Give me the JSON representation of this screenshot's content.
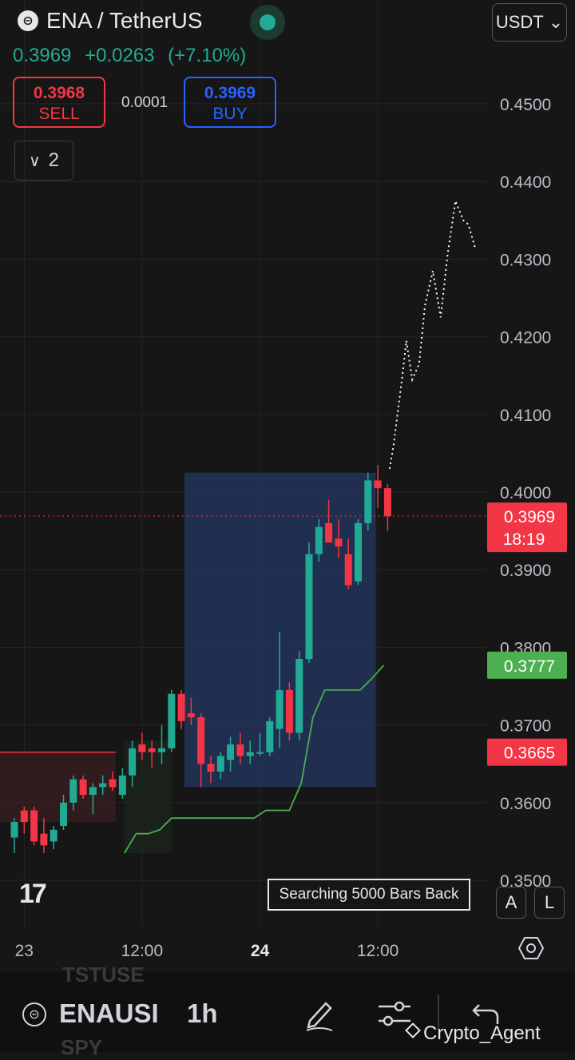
{
  "header": {
    "pair": "ENA / TetherUS",
    "last_price": "0.3969",
    "change": "+0.0263",
    "change_pct": "(+7.10%)",
    "currency": "USDT",
    "sell_price": "0.3968",
    "sell_label": "SELL",
    "buy_price": "0.3969",
    "buy_label": "BUY",
    "spread": "0.0001",
    "collapse_count": "2"
  },
  "chart_data": {
    "type": "candlestick",
    "ylim": [
      0.35,
      0.45
    ],
    "y_ticks": [
      "0.4500",
      "0.4400",
      "0.4300",
      "0.4200",
      "0.4100",
      "0.4000",
      "0.3900",
      "0.3800",
      "0.3700",
      "0.3600",
      "0.3500"
    ],
    "x_ticks": [
      {
        "label": "23",
        "bold": false,
        "index": 1
      },
      {
        "label": "12:00",
        "bold": false,
        "index": 13
      },
      {
        "label": "24",
        "bold": true,
        "index": 25
      },
      {
        "label": "12:00",
        "bold": false,
        "index": 37
      }
    ],
    "candles": [
      [
        0.3555,
        0.358,
        0.3535,
        0.3575
      ],
      [
        0.359,
        0.3595,
        0.356,
        0.3575
      ],
      [
        0.359,
        0.3595,
        0.3545,
        0.355
      ],
      [
        0.356,
        0.358,
        0.3535,
        0.3545
      ],
      [
        0.355,
        0.357,
        0.354,
        0.3565
      ],
      [
        0.357,
        0.361,
        0.3565,
        0.36
      ],
      [
        0.36,
        0.3635,
        0.359,
        0.363
      ],
      [
        0.363,
        0.3635,
        0.3605,
        0.361
      ],
      [
        0.361,
        0.3625,
        0.3585,
        0.362
      ],
      [
        0.362,
        0.3635,
        0.361,
        0.3625
      ],
      [
        0.363,
        0.364,
        0.3615,
        0.362
      ],
      [
        0.361,
        0.3645,
        0.3605,
        0.3635
      ],
      [
        0.3635,
        0.368,
        0.362,
        0.367
      ],
      [
        0.3675,
        0.369,
        0.3655,
        0.3665
      ],
      [
        0.367,
        0.368,
        0.3645,
        0.3665
      ],
      [
        0.3665,
        0.37,
        0.365,
        0.367
      ],
      [
        0.367,
        0.3745,
        0.3665,
        0.374
      ],
      [
        0.374,
        0.3745,
        0.3695,
        0.3705
      ],
      [
        0.3715,
        0.3735,
        0.37,
        0.371
      ],
      [
        0.371,
        0.3715,
        0.362,
        0.365
      ],
      [
        0.365,
        0.366,
        0.3625,
        0.364
      ],
      [
        0.364,
        0.3665,
        0.363,
        0.366
      ],
      [
        0.3655,
        0.3685,
        0.364,
        0.3675
      ],
      [
        0.3675,
        0.369,
        0.365,
        0.366
      ],
      [
        0.366,
        0.368,
        0.365,
        0.3665
      ],
      [
        0.3665,
        0.369,
        0.366,
        0.3665
      ],
      [
        0.3665,
        0.371,
        0.366,
        0.3705
      ],
      [
        0.3695,
        0.382,
        0.367,
        0.3745
      ],
      [
        0.3745,
        0.3755,
        0.368,
        0.369
      ],
      [
        0.369,
        0.3795,
        0.368,
        0.3785
      ],
      [
        0.3785,
        0.3935,
        0.378,
        0.392
      ],
      [
        0.392,
        0.3965,
        0.391,
        0.3955
      ],
      [
        0.396,
        0.399,
        0.3935,
        0.3935
      ],
      [
        0.394,
        0.3965,
        0.3915,
        0.393
      ],
      [
        0.392,
        0.394,
        0.3875,
        0.388
      ],
      [
        0.3885,
        0.3965,
        0.388,
        0.396
      ],
      [
        0.396,
        0.4025,
        0.395,
        0.4015
      ],
      [
        0.4015,
        0.4035,
        0.398,
        0.4005
      ],
      [
        0.4005,
        0.401,
        0.395,
        0.3969
      ]
    ],
    "support_line": [
      [
        0.3535,
        0.356,
        0.356,
        0.3565,
        0.358,
        0.358,
        0.358,
        0.358,
        0.358,
        0.358,
        0.358,
        0.358,
        0.359,
        0.359,
        0.359,
        0.3625,
        0.371,
        0.3745,
        0.3745,
        0.3745,
        0.3745,
        0.376,
        0.3777
      ]
    ],
    "projection": [
      [
        38.2,
        0.403
      ],
      [
        38.6,
        0.406
      ],
      [
        39.0,
        0.41
      ],
      [
        39.5,
        0.415
      ],
      [
        39.9,
        0.4195
      ],
      [
        40.5,
        0.4145
      ],
      [
        41.2,
        0.4165
      ],
      [
        41.8,
        0.424
      ],
      [
        42.6,
        0.4285
      ],
      [
        43.4,
        0.4225
      ],
      [
        44.1,
        0.4305
      ],
      [
        44.9,
        0.4375
      ],
      [
        45.7,
        0.435
      ],
      [
        46.2,
        0.4345
      ],
      [
        46.9,
        0.4315
      ]
    ],
    "price_tags": [
      {
        "value": "0.3969",
        "extra": "18:19",
        "color": "#f23645",
        "y": 0.3969
      },
      {
        "value": "0.3777",
        "extra": "",
        "color": "#4caf50",
        "y": 0.3777
      },
      {
        "value": "0.3665",
        "extra": "",
        "color": "#f23645",
        "y": 0.3665
      }
    ]
  },
  "overlay": {
    "search_text": "Searching 5000 Bars Back",
    "auto_label": "A",
    "log_label": "L"
  },
  "bottom_bar": {
    "symbol": "ENAUSI",
    "ghost_above": "TSTUSE",
    "ghost_below": "SPY",
    "timeframe": "1h",
    "watermark": "Crypto_Agent"
  },
  "colors": {
    "up": "#22ab94",
    "down": "#f23645",
    "support": "#4caf50",
    "projection": "#ffffff"
  }
}
